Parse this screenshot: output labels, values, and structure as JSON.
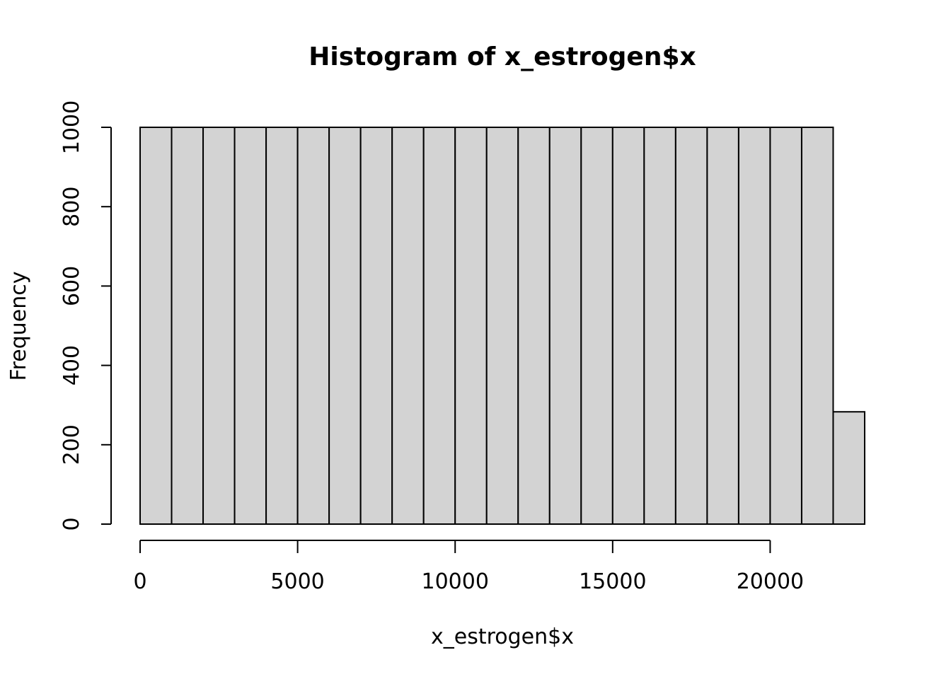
{
  "chart_data": {
    "type": "bar",
    "title": "Histogram of x_estrogen$x",
    "xlabel": "x_estrogen$x",
    "ylabel": "Frequency",
    "bin_edges": [
      0,
      1000,
      2000,
      3000,
      4000,
      5000,
      6000,
      7000,
      8000,
      9000,
      10000,
      11000,
      12000,
      13000,
      14000,
      15000,
      16000,
      17000,
      18000,
      19000,
      20000,
      21000,
      22000,
      23000
    ],
    "values": [
      1000,
      1000,
      1000,
      1000,
      1000,
      1000,
      1000,
      1000,
      1000,
      1000,
      1000,
      1000,
      1000,
      1000,
      1000,
      1000,
      1000,
      1000,
      1000,
      1000,
      1000,
      1000,
      283
    ],
    "xlim": [
      0,
      23000
    ],
    "ylim": [
      0,
      1000
    ],
    "x_ticks": [
      0,
      5000,
      10000,
      15000,
      20000
    ],
    "y_ticks": [
      0,
      200,
      400,
      600,
      800,
      1000
    ],
    "grid": false,
    "legend": "none",
    "bar_fill": "#d3d3d3",
    "bar_stroke": "#000000"
  }
}
